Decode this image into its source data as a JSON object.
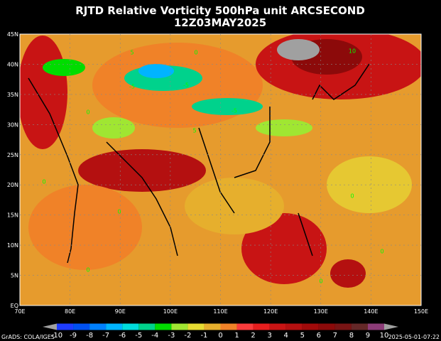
{
  "title": {
    "line1": "RJTD Relative Vorticity 500hPa unit ARCSECOND",
    "line2": "12Z03MAY2025"
  },
  "lat_labels": [
    "45N",
    "40N",
    "35N",
    "30N",
    "25N",
    "20N",
    "15N",
    "10N",
    "5N",
    "EQ"
  ],
  "lon_labels": [
    "70E",
    "80E",
    "90E",
    "100E",
    "110E",
    "120E",
    "130E",
    "140E",
    "150E"
  ],
  "colorbar": {
    "labels": [
      -10,
      -9,
      -8,
      -7,
      -6,
      -5,
      -4,
      -3,
      -2,
      -1,
      0,
      1,
      2,
      3,
      4,
      5,
      6,
      7,
      8,
      9,
      10
    ],
    "colors": [
      "#a0a0a0",
      "#1e3cff",
      "#0050f0",
      "#0080ff",
      "#00b4ff",
      "#00dcdc",
      "#00d28c",
      "#00dc00",
      "#a0e632",
      "#e6dc32",
      "#e6af2d",
      "#f08228",
      "#fa3c3c",
      "#e61e1e",
      "#c81414",
      "#b41010",
      "#a00a0a",
      "#8c0a0a",
      "#781414",
      "#642828",
      "#8c3c78",
      "#a0a0a0"
    ]
  },
  "contour_labels": [
    "0",
    "5",
    "-5",
    "10",
    "0",
    "-5",
    "0",
    "5",
    "0",
    "0",
    "0",
    "0",
    "0",
    "-5"
  ],
  "footer": {
    "left": "GrADS: COLA/IGES",
    "right": "2025-05-01-07:22"
  }
}
